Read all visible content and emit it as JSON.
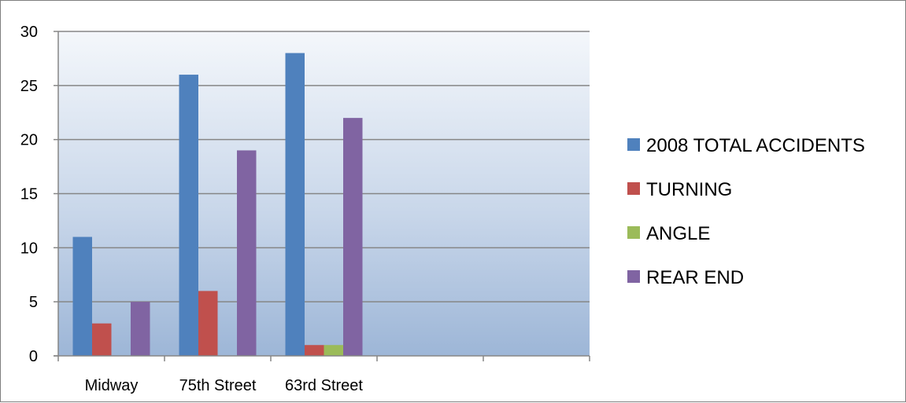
{
  "chart_data": {
    "type": "bar",
    "title": "",
    "xlabel": "",
    "ylabel": "",
    "categories": [
      "Midway",
      "75th Street",
      "63rd Street",
      "",
      ""
    ],
    "series": [
      {
        "name": "2008 TOTAL ACCIDENTS",
        "color": "#4f81bd",
        "values": [
          11,
          26,
          28,
          null,
          null
        ]
      },
      {
        "name": "TURNING",
        "color": "#c0504d",
        "values": [
          3,
          6,
          1,
          null,
          null
        ]
      },
      {
        "name": "ANGLE",
        "color": "#9bbb59",
        "values": [
          0,
          0,
          1,
          null,
          null
        ]
      },
      {
        "name": "REAR END",
        "color": "#8064a2",
        "values": [
          5,
          19,
          22,
          null,
          null
        ]
      }
    ],
    "ylim": [
      0,
      30
    ],
    "yticks": [
      0,
      5,
      10,
      15,
      20,
      25,
      30
    ],
    "grid": true,
    "legend_position": "right",
    "plot_background": "gradient light-blue"
  }
}
